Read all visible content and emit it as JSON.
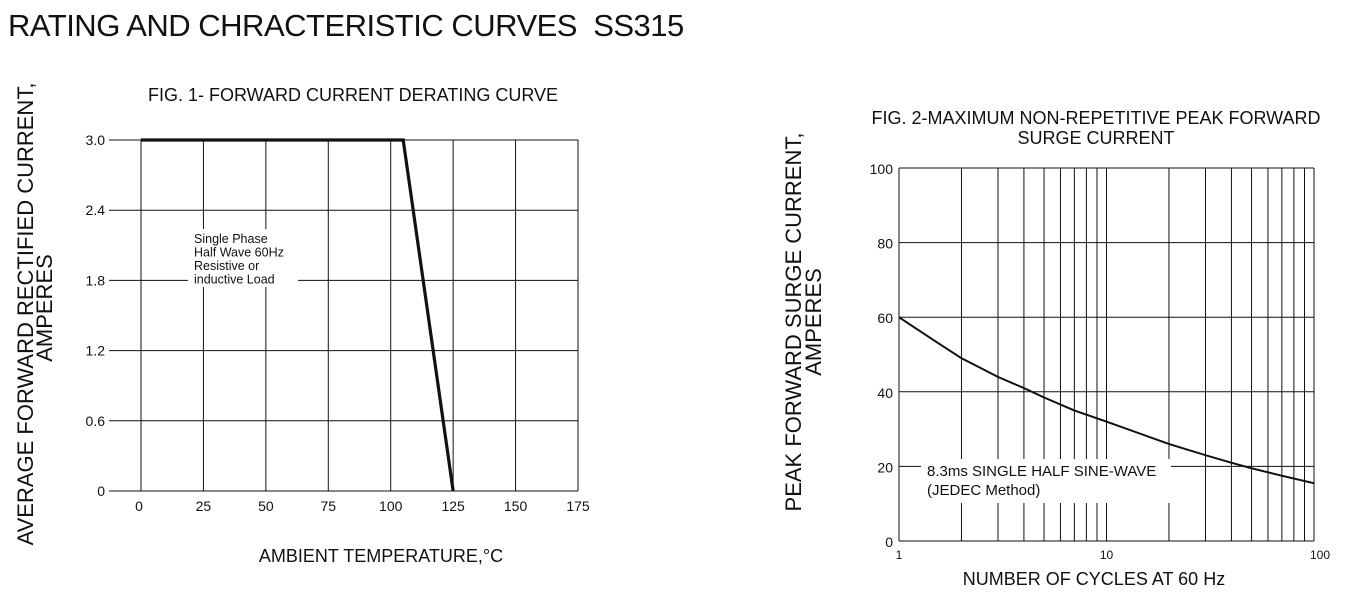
{
  "page_title": "RATING AND CHRACTERISTIC CURVES  SS315",
  "chart_data": [
    {
      "type": "line",
      "title": "FIG. 1- FORWARD CURRENT DERATING CURVE",
      "xlabel": "AMBIENT TEMPERATURE,°C",
      "ylabel_lines": [
        "AVERAGE FORWARD RECTIFIED CURRENT,",
        "AMPERES"
      ],
      "x_ticks": [
        0,
        25,
        50,
        75,
        100,
        125,
        150,
        175
      ],
      "y_ticks": [
        0,
        0.6,
        1.2,
        1.8,
        2.4,
        3.0
      ],
      "y_tick_labels": [
        "0",
        "0.6",
        "1.2",
        "1.8",
        "2.4",
        "3.0"
      ],
      "xlim": [
        0,
        175
      ],
      "ylim": [
        0,
        3.0
      ],
      "grid": true,
      "annotation_lines": [
        "Single Phase",
        "Half Wave 60Hz",
        "Resistive or",
        "inductive Load"
      ],
      "series": [
        {
          "x": [
            0,
            105,
            125
          ],
          "y": [
            3.0,
            3.0,
            0
          ]
        }
      ]
    },
    {
      "type": "line",
      "title_lines": [
        "FIG. 2-MAXIMUM NON-REPETITIVE PEAK FORWARD",
        "SURGE CURRENT"
      ],
      "xlabel": "NUMBER OF CYCLES AT 60 Hz",
      "ylabel_lines": [
        "PEAK  FORWARD SURGE CURRENT,",
        "AMPERES"
      ],
      "x_scale": "log",
      "x_ticks": [
        1,
        10,
        100
      ],
      "x_tick_labels": [
        "1",
        "10",
        "100"
      ],
      "y_ticks": [
        0,
        20,
        40,
        60,
        80,
        100
      ],
      "xlim": [
        1,
        100
      ],
      "ylim": [
        0,
        100
      ],
      "grid": true,
      "annotation_lines": [
        "8.3ms SINGLE HALF SINE-WAVE",
        "(JEDEC Method)"
      ],
      "series": [
        {
          "x": [
            1,
            1.5,
            2,
            3,
            4,
            5,
            7,
            10,
            15,
            20,
            30,
            40,
            50,
            70,
            100
          ],
          "y": [
            60,
            53.5,
            49,
            44,
            41,
            38.5,
            35,
            32,
            28.5,
            26,
            23,
            21,
            19.5,
            17.5,
            15.5
          ]
        }
      ]
    }
  ]
}
